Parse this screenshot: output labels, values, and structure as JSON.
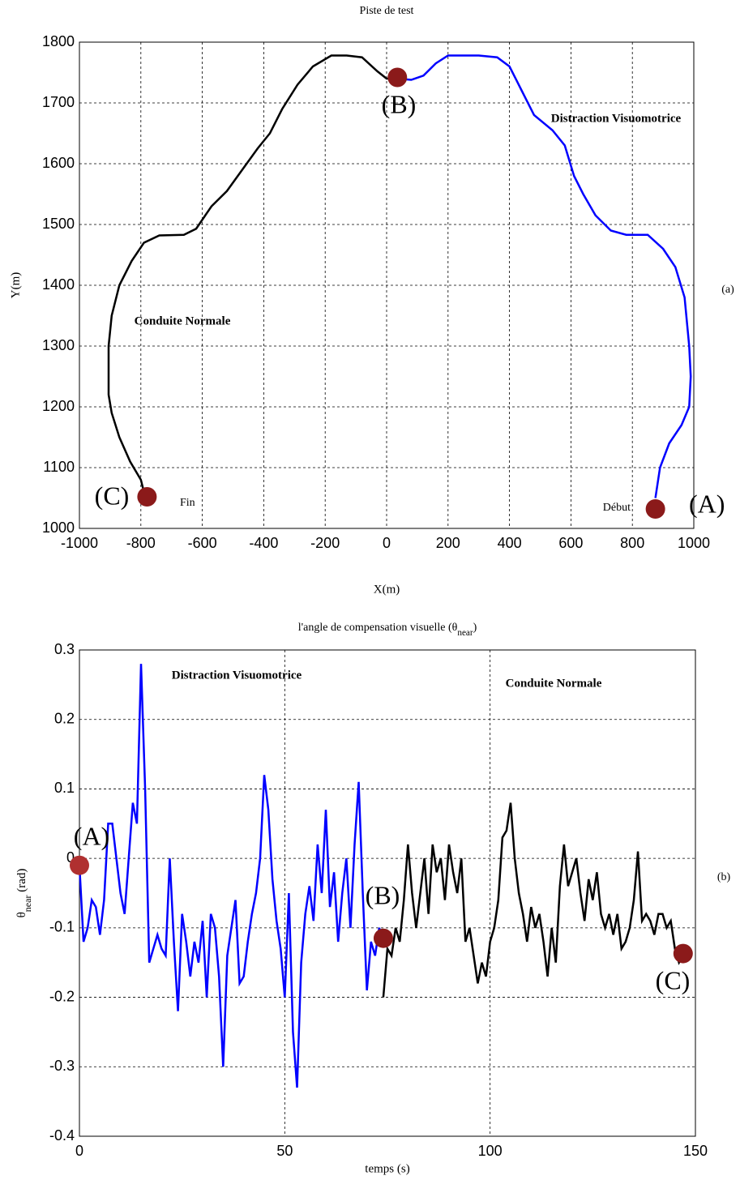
{
  "chart_data": [
    {
      "type": "line",
      "title": "Piste de test",
      "xlabel": "X(m)",
      "ylabel": "Y(m)",
      "panel": "(a)",
      "xlim": [
        -1000,
        1000
      ],
      "ylim": [
        1000,
        1800
      ],
      "xticks": [
        -1000,
        -800,
        -600,
        -400,
        -200,
        0,
        200,
        400,
        600,
        800,
        1000
      ],
      "yticks": [
        1000,
        1100,
        1200,
        1300,
        1400,
        1500,
        1600,
        1700,
        1800
      ],
      "grid": true,
      "series": [
        {
          "name": "Distraction Visuomotrice",
          "color": "#0000ff",
          "x": [
            875,
            890,
            920,
            960,
            985,
            990,
            985,
            970,
            940,
            900,
            850,
            780,
            730,
            680,
            640,
            610,
            580,
            540,
            480,
            440,
            400,
            360,
            300,
            200,
            160,
            120,
            80,
            35
          ],
          "values": [
            1050,
            1100,
            1140,
            1170,
            1200,
            1250,
            1300,
            1380,
            1430,
            1460,
            1483,
            1483,
            1490,
            1515,
            1550,
            1580,
            1630,
            1655,
            1680,
            1720,
            1760,
            1775,
            1778,
            1778,
            1765,
            1745,
            1738,
            1740
          ]
        },
        {
          "name": "Conduite Normale",
          "color": "#000000",
          "x": [
            35,
            0,
            -30,
            -80,
            -130,
            -180,
            -240,
            -290,
            -340,
            -380,
            -420,
            -470,
            -520,
            -570,
            -620,
            -660,
            -740,
            -790,
            -830,
            -870,
            -895,
            -905,
            -905,
            -895,
            -870,
            -835,
            -800,
            -790
          ],
          "values": [
            1740,
            1740,
            1752,
            1775,
            1778,
            1778,
            1760,
            1730,
            1690,
            1650,
            1625,
            1590,
            1555,
            1530,
            1493,
            1483,
            1482,
            1470,
            1440,
            1400,
            1350,
            1300,
            1220,
            1190,
            1150,
            1110,
            1080,
            1060
          ]
        }
      ],
      "points": [
        {
          "label": "(A)",
          "x": 875,
          "y": 1032,
          "color": "#8b1a1a"
        },
        {
          "label": "(B)",
          "x": 35,
          "y": 1742,
          "color": "#8b1a1a"
        },
        {
          "label": "(C)",
          "x": -780,
          "y": 1052,
          "color": "#8b1a1a"
        }
      ],
      "annotations": [
        "Début",
        "Fin"
      ]
    },
    {
      "type": "line",
      "title": [
        "l'angle de compensation visuelle (θ",
        "near",
        ")"
      ],
      "xlabel": "temps (s)",
      "ylabel": [
        "θ",
        "near",
        " (rad)"
      ],
      "panel": "(b)",
      "xlim": [
        0,
        150
      ],
      "ylim": [
        -0.4,
        0.3
      ],
      "xticks": [
        0,
        50,
        100,
        150
      ],
      "yticks": [
        -0.4,
        -0.3,
        -0.2,
        -0.1,
        0,
        0.1,
        0.2,
        0.3
      ],
      "grid": true,
      "series": [
        {
          "name": "Distraction Visuomotrice",
          "color": "#0000ff",
          "x": [
            0,
            1,
            2,
            3,
            4,
            5,
            6,
            7,
            8,
            9,
            10,
            11,
            12,
            13,
            14,
            15,
            16,
            17,
            18,
            19,
            20,
            21,
            22,
            23,
            24,
            25,
            26,
            27,
            28,
            29,
            30,
            31,
            32,
            33,
            34,
            35,
            36,
            37,
            38,
            39,
            40,
            41,
            42,
            43,
            44,
            45,
            46,
            47,
            48,
            49,
            50,
            51,
            52,
            53,
            54,
            55,
            56,
            57,
            58,
            59,
            60,
            61,
            62,
            63,
            64,
            65,
            66,
            67,
            68,
            69,
            70,
            71,
            72,
            73,
            74
          ],
          "values": [
            -0.01,
            -0.12,
            -0.1,
            -0.06,
            -0.07,
            -0.11,
            -0.06,
            0.05,
            0.05,
            0.0,
            -0.05,
            -0.08,
            0.0,
            0.08,
            0.05,
            0.28,
            0.1,
            -0.15,
            -0.13,
            -0.11,
            -0.13,
            -0.14,
            0.0,
            -0.12,
            -0.22,
            -0.08,
            -0.12,
            -0.17,
            -0.12,
            -0.15,
            -0.09,
            -0.2,
            -0.08,
            -0.1,
            -0.17,
            -0.3,
            -0.14,
            -0.1,
            -0.06,
            -0.18,
            -0.17,
            -0.12,
            -0.08,
            -0.05,
            0.0,
            0.12,
            0.07,
            -0.03,
            -0.09,
            -0.13,
            -0.2,
            -0.05,
            -0.25,
            -0.33,
            -0.15,
            -0.08,
            -0.04,
            -0.09,
            0.02,
            -0.05,
            0.07,
            -0.07,
            -0.02,
            -0.12,
            -0.05,
            0.0,
            -0.1,
            0.02,
            0.11,
            -0.05,
            -0.19,
            -0.12,
            -0.14,
            -0.1,
            -0.12
          ]
        },
        {
          "name": "Conduite Normale",
          "color": "#000000",
          "x": [
            74,
            75,
            76,
            77,
            78,
            79,
            80,
            81,
            82,
            83,
            84,
            85,
            86,
            87,
            88,
            89,
            90,
            91,
            92,
            93,
            94,
            95,
            96,
            97,
            98,
            99,
            100,
            101,
            102,
            103,
            104,
            105,
            106,
            107,
            108,
            109,
            110,
            111,
            112,
            113,
            114,
            115,
            116,
            117,
            118,
            119,
            120,
            121,
            122,
            123,
            124,
            125,
            126,
            127,
            128,
            129,
            130,
            131,
            132,
            133,
            134,
            135,
            136,
            137,
            138,
            139,
            140,
            141,
            142,
            143,
            144,
            145,
            146,
            147
          ],
          "values": [
            -0.2,
            -0.13,
            -0.14,
            -0.1,
            -0.12,
            -0.06,
            0.02,
            -0.05,
            -0.1,
            -0.05,
            0.0,
            -0.08,
            0.02,
            -0.02,
            0.0,
            -0.06,
            0.02,
            -0.02,
            -0.05,
            0.0,
            -0.12,
            -0.1,
            -0.14,
            -0.18,
            -0.15,
            -0.17,
            -0.12,
            -0.1,
            -0.06,
            0.03,
            0.04,
            0.08,
            0.0,
            -0.05,
            -0.08,
            -0.12,
            -0.07,
            -0.1,
            -0.08,
            -0.12,
            -0.17,
            -0.1,
            -0.15,
            -0.04,
            0.02,
            -0.04,
            -0.02,
            0.0,
            -0.05,
            -0.09,
            -0.03,
            -0.06,
            -0.02,
            -0.08,
            -0.1,
            -0.08,
            -0.11,
            -0.08,
            -0.13,
            -0.12,
            -0.1,
            -0.06,
            0.01,
            -0.09,
            -0.08,
            -0.09,
            -0.11,
            -0.08,
            -0.08,
            -0.1,
            -0.09,
            -0.13,
            -0.15,
            -0.14
          ]
        }
      ],
      "points": [
        {
          "label": "(A)",
          "x": 0,
          "y": -0.01,
          "color": "#b03030"
        },
        {
          "label": "(B)",
          "x": 74,
          "y": -0.115,
          "color": "#8b1a1a"
        },
        {
          "label": "(C)",
          "x": 147,
          "y": -0.137,
          "color": "#8b1a1a"
        }
      ]
    }
  ]
}
